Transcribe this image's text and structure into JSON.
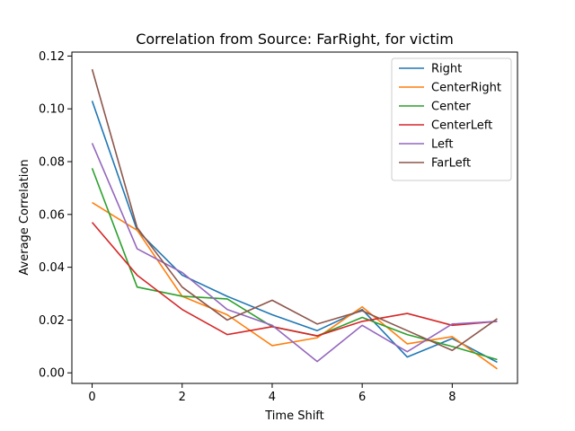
{
  "chart_data": {
    "type": "line",
    "title": "Correlation from Source: FarRight, for victim",
    "xlabel": "Time Shift",
    "ylabel": "Average Correlation",
    "xlim": [
      -0.45,
      9.45
    ],
    "ylim": [
      -0.004,
      0.1215
    ],
    "xticks": [
      0,
      2,
      4,
      6,
      8
    ],
    "xtick_labels": [
      "0",
      "2",
      "4",
      "6",
      "8"
    ],
    "yticks": [
      0.0,
      0.02,
      0.04,
      0.06,
      0.08,
      0.1,
      0.12
    ],
    "ytick_labels": [
      "0.00",
      "0.02",
      "0.04",
      "0.06",
      "0.08",
      "0.10",
      "0.12"
    ],
    "grid": false,
    "legend_position": "top-right",
    "x": [
      0,
      1,
      2,
      3,
      4,
      5,
      6,
      7,
      8,
      9
    ],
    "series": [
      {
        "name": "Right",
        "color": "#1f77b4",
        "values": [
          0.103,
          0.054,
          0.037,
          0.029,
          0.022,
          0.016,
          0.024,
          0.006,
          0.013,
          0.004
        ]
      },
      {
        "name": "CenterRight",
        "color": "#ff7f0e",
        "values": [
          0.0645,
          0.054,
          0.029,
          0.022,
          0.0103,
          0.0133,
          0.025,
          0.011,
          0.0137,
          0.0015
        ]
      },
      {
        "name": "Center",
        "color": "#2ca02c",
        "values": [
          0.0775,
          0.0325,
          0.029,
          0.028,
          0.0175,
          0.014,
          0.021,
          0.0145,
          0.01,
          0.005
        ]
      },
      {
        "name": "CenterLeft",
        "color": "#d62728",
        "values": [
          0.057,
          0.037,
          0.024,
          0.0145,
          0.0175,
          0.014,
          0.0195,
          0.0225,
          0.018,
          0.0195
        ]
      },
      {
        "name": "Left",
        "color": "#9467bd",
        "values": [
          0.087,
          0.047,
          0.038,
          0.024,
          0.018,
          0.0043,
          0.018,
          0.008,
          0.0185,
          0.0195
        ]
      },
      {
        "name": "FarLeft",
        "color": "#8c564b",
        "values": [
          0.115,
          0.055,
          0.0325,
          0.02,
          0.0275,
          0.0185,
          0.0235,
          0.016,
          0.0085,
          0.0205
        ]
      }
    ]
  }
}
